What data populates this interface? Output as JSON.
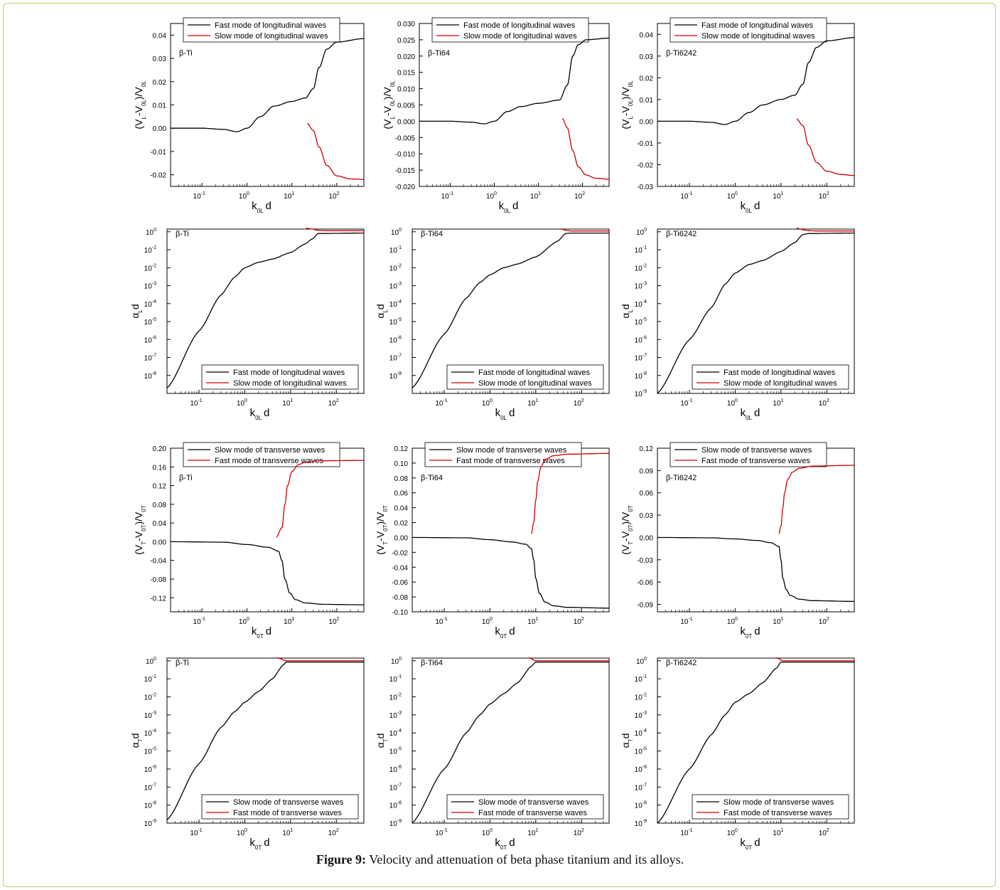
{
  "figure": {
    "caption_label": "Figure 9:",
    "caption_text": " Velocity and attenuation of beta phase titanium and its alloys."
  },
  "chart_data": [
    {
      "id": "a1",
      "type": "line",
      "material": "β-Ti",
      "xlabel": "k0L d",
      "ylabel": "(VL-V0L)/V0L",
      "xscale": "log",
      "xlim": [
        0.02,
        400
      ],
      "ylim": [
        -0.025,
        0.045
      ],
      "yticks": [
        "-0.02",
        "-0.01",
        "0.00",
        "0.01",
        "0.02",
        "0.03",
        "0.04"
      ],
      "ytick_values": [
        -0.02,
        -0.01,
        0,
        0.01,
        0.02,
        0.03,
        0.04
      ],
      "legend": "top",
      "series": [
        {
          "name": "Fast mode of longitudinal waves",
          "color": "#000000",
          "x": [
            0.02,
            0.1,
            0.3,
            0.6,
            1,
            2,
            4,
            10,
            20,
            30,
            40,
            60,
            100,
            400
          ],
          "y": [
            0.0,
            0.0,
            -0.0005,
            -0.0015,
            0.0,
            0.005,
            0.0095,
            0.0115,
            0.013,
            0.017,
            0.026,
            0.034,
            0.037,
            0.0385
          ]
        },
        {
          "name": "Slow mode of longitudinal waves",
          "color": "#cc0000",
          "x": [
            22,
            30,
            40,
            60,
            100,
            200,
            400
          ],
          "y": [
            0.002,
            -0.001,
            -0.008,
            -0.016,
            -0.0205,
            -0.0218,
            -0.022
          ]
        }
      ]
    },
    {
      "id": "a2",
      "type": "line",
      "material": "β-Ti64",
      "xlabel": "k0L d",
      "ylabel": "(VL-V0L)/V0L",
      "xscale": "log",
      "xlim": [
        0.02,
        400
      ],
      "ylim": [
        -0.02,
        0.03
      ],
      "yticks": [
        "-0.020",
        "-0.015",
        "-0.010",
        "-0.005",
        "0.000",
        "0.005",
        "0.010",
        "0.015",
        "0.020",
        "0.025",
        "0.030"
      ],
      "ytick_values": [
        -0.02,
        -0.015,
        -0.01,
        -0.005,
        0,
        0.005,
        0.01,
        0.015,
        0.02,
        0.025,
        0.03
      ],
      "legend": "top",
      "series": [
        {
          "name": "Fast mode of longitudinal waves",
          "color": "#000000",
          "x": [
            0.02,
            0.1,
            0.3,
            0.6,
            1,
            2,
            4,
            10,
            30,
            45,
            60,
            80,
            120,
            400
          ],
          "y": [
            0.0,
            0.0,
            -0.0003,
            -0.0008,
            0.0,
            0.003,
            0.0045,
            0.0055,
            0.0065,
            0.011,
            0.02,
            0.0235,
            0.025,
            0.0255
          ]
        },
        {
          "name": "Slow mode of longitudinal waves",
          "color": "#cc0000",
          "x": [
            35,
            45,
            60,
            80,
            120,
            200,
            400
          ],
          "y": [
            0.0008,
            -0.002,
            -0.009,
            -0.014,
            -0.0165,
            -0.0175,
            -0.0178
          ]
        }
      ]
    },
    {
      "id": "a3",
      "type": "line",
      "material": "β-Ti6242",
      "xlabel": "k0L d",
      "ylabel": "(VL-V0L)/V0L",
      "xscale": "log",
      "xlim": [
        0.02,
        400
      ],
      "ylim": [
        -0.03,
        0.045
      ],
      "yticks": [
        "-0.03",
        "-0.02",
        "-0.01",
        "0.00",
        "0.01",
        "0.02",
        "0.03",
        "0.04"
      ],
      "ytick_values": [
        -0.03,
        -0.02,
        -0.01,
        0,
        0.01,
        0.02,
        0.03,
        0.04
      ],
      "legend": "top",
      "series": [
        {
          "name": "Fast mode of longitudinal waves",
          "color": "#000000",
          "x": [
            0.02,
            0.1,
            0.3,
            0.6,
            1,
            2,
            4,
            10,
            20,
            30,
            40,
            60,
            100,
            400
          ],
          "y": [
            0.0,
            0.0,
            -0.0005,
            -0.0015,
            0.0,
            0.004,
            0.0075,
            0.01,
            0.012,
            0.017,
            0.027,
            0.034,
            0.037,
            0.0385
          ]
        },
        {
          "name": "Slow mode of longitudinal waves",
          "color": "#cc0000",
          "x": [
            22,
            30,
            40,
            60,
            100,
            200,
            400
          ],
          "y": [
            0.001,
            -0.002,
            -0.011,
            -0.019,
            -0.023,
            -0.0245,
            -0.025
          ]
        }
      ]
    },
    {
      "id": "b1",
      "type": "line",
      "material": "β-Ti",
      "xlabel": "k0L d",
      "ylabel": "αL d",
      "xscale": "log",
      "yscale": "log",
      "xlim": [
        0.02,
        400
      ],
      "ylim_exp": [
        -9,
        0
      ],
      "yticks": [
        "10-8",
        "10-7",
        "10-6",
        "10-5",
        "10-4",
        "10-3",
        "10-2",
        "10-1",
        "100"
      ],
      "ytick_values": [
        -8,
        -7,
        -6,
        -5,
        -4,
        -3,
        -2,
        -1,
        0
      ],
      "legend": "bottom-right",
      "series": [
        {
          "name": "Fast mode of longitudinal waves",
          "color": "#000000",
          "x": [
            0.02,
            0.1,
            0.3,
            0.6,
            1,
            2,
            4,
            10,
            20,
            30,
            40,
            400
          ],
          "y": [
            2e-09,
            3e-06,
            0.0003,
            0.003,
            0.01,
            0.02,
            0.03,
            0.07,
            0.2,
            0.4,
            0.8,
            0.85
          ]
        },
        {
          "name": "Slow mode of longitudinal waves",
          "color": "#cc0000",
          "x": [
            22,
            30,
            40,
            60,
            100,
            400
          ],
          "y": [
            1.6,
            1.4,
            1.2,
            1.15,
            1.15,
            1.15
          ]
        }
      ]
    },
    {
      "id": "b2",
      "type": "line",
      "material": "β-Ti64",
      "xlabel": "k0L d",
      "ylabel": "αL d",
      "xscale": "log",
      "yscale": "log",
      "xlim": [
        0.02,
        400
      ],
      "ylim_exp": [
        -9,
        0
      ],
      "yticks": [
        "10-8",
        "10-7",
        "10-6",
        "10-5",
        "10-4",
        "10-3",
        "10-2",
        "10-1",
        "100"
      ],
      "ytick_values": [
        -8,
        -7,
        -6,
        -5,
        -4,
        -3,
        -2,
        -1,
        0
      ],
      "legend": "bottom-right",
      "series": [
        {
          "name": "Fast mode of longitudinal waves",
          "color": "#000000",
          "x": [
            0.02,
            0.1,
            0.3,
            0.6,
            1,
            2,
            4,
            10,
            30,
            45,
            60,
            400
          ],
          "y": [
            2e-09,
            2e-06,
            0.0002,
            0.0015,
            0.004,
            0.01,
            0.016,
            0.04,
            0.3,
            0.8,
            0.85,
            0.85
          ]
        },
        {
          "name": "Slow mode of longitudinal waves",
          "color": "#cc0000",
          "x": [
            35,
            45,
            60,
            100,
            400
          ],
          "y": [
            1.5,
            1.2,
            1.1,
            1.1,
            1.1
          ]
        }
      ]
    },
    {
      "id": "b3",
      "type": "line",
      "material": "β-Ti6242",
      "xlabel": "k0L d",
      "ylabel": "αL d",
      "xscale": "log",
      "yscale": "log",
      "xlim": [
        0.02,
        400
      ],
      "ylim_exp": [
        -9,
        0
      ],
      "yticks": [
        "10-9",
        "10-8",
        "10-7",
        "10-6",
        "10-5",
        "10-4",
        "10-3",
        "10-2",
        "10-1",
        "100"
      ],
      "ytick_values": [
        -9,
        -8,
        -7,
        -6,
        -5,
        -4,
        -3,
        -2,
        -1,
        0
      ],
      "legend": "bottom-right",
      "series": [
        {
          "name": "Fast mode of longitudinal waves",
          "color": "#000000",
          "x": [
            0.02,
            0.1,
            0.3,
            0.6,
            1,
            2,
            4,
            10,
            20,
            30,
            40,
            400
          ],
          "y": [
            1e-09,
            1e-06,
            6e-05,
            0.0012,
            0.005,
            0.015,
            0.025,
            0.08,
            0.25,
            0.7,
            0.8,
            0.85
          ]
        },
        {
          "name": "Slow mode of longitudinal waves",
          "color": "#cc0000",
          "x": [
            22,
            30,
            40,
            60,
            100,
            400
          ],
          "y": [
            1.6,
            1.3,
            1.15,
            1.1,
            1.1,
            1.1
          ]
        }
      ]
    },
    {
      "id": "c1",
      "type": "line",
      "material": "β-Ti",
      "xlabel": "k0T d",
      "ylabel": "(VT-V0T)/V0T",
      "xscale": "log",
      "xlim": [
        0.02,
        400
      ],
      "ylim": [
        -0.15,
        0.2
      ],
      "yticks": [
        "-0.12",
        "-0.08",
        "-0.04",
        "0.00",
        "0.04",
        "0.08",
        "0.12",
        "0.16",
        "0.20"
      ],
      "ytick_values": [
        -0.12,
        -0.08,
        -0.04,
        0,
        0.04,
        0.08,
        0.12,
        0.16,
        0.2
      ],
      "legend": "top",
      "series": [
        {
          "name": "Slow mode of transverse waves",
          "color": "#000000",
          "x": [
            0.02,
            0.3,
            1,
            3,
            5,
            6,
            7,
            9,
            12,
            20,
            50,
            400
          ],
          "y": [
            0.0,
            -0.001,
            -0.006,
            -0.012,
            -0.02,
            -0.04,
            -0.08,
            -0.11,
            -0.124,
            -0.131,
            -0.134,
            -0.135
          ]
        },
        {
          "name": "Fast mode of transverse waves",
          "color": "#cc0000",
          "x": [
            4.5,
            6,
            7,
            8,
            10,
            14,
            20,
            40,
            400
          ],
          "y": [
            0.01,
            0.03,
            0.08,
            0.12,
            0.15,
            0.165,
            0.17,
            0.173,
            0.174
          ]
        }
      ]
    },
    {
      "id": "c2",
      "type": "line",
      "material": "β-Ti64",
      "xlabel": "k0T d",
      "ylabel": "(VT-V0T)/V0T",
      "xscale": "log",
      "xlim": [
        0.02,
        400
      ],
      "ylim": [
        -0.1,
        0.12
      ],
      "yticks": [
        "-0.10",
        "-0.08",
        "-0.06",
        "-0.04",
        "-0.02",
        "0.00",
        "0.02",
        "0.04",
        "0.06",
        "0.08",
        "0.10",
        "0.12"
      ],
      "ytick_values": [
        -0.1,
        -0.08,
        -0.06,
        -0.04,
        -0.02,
        0,
        0.02,
        0.04,
        0.06,
        0.08,
        0.1,
        0.12
      ],
      "legend": "top",
      "series": [
        {
          "name": "Slow mode of transverse waves",
          "color": "#000000",
          "x": [
            0.02,
            0.3,
            1,
            3,
            6,
            8,
            9,
            10,
            12,
            16,
            25,
            50,
            400
          ],
          "y": [
            0.0,
            -0.0005,
            -0.003,
            -0.006,
            -0.009,
            -0.015,
            -0.03,
            -0.055,
            -0.075,
            -0.087,
            -0.092,
            -0.094,
            -0.095
          ]
        },
        {
          "name": "Fast mode of transverse waves",
          "color": "#cc0000",
          "x": [
            8,
            9,
            10,
            11,
            13,
            16,
            25,
            50,
            400
          ],
          "y": [
            0.005,
            0.02,
            0.05,
            0.075,
            0.095,
            0.105,
            0.11,
            0.112,
            0.113
          ]
        }
      ]
    },
    {
      "id": "c3",
      "type": "line",
      "material": "β-Ti6242",
      "xlabel": "k0T d",
      "ylabel": "(VT-V0T)/V0T",
      "xscale": "log",
      "xlim": [
        0.02,
        400
      ],
      "ylim": [
        -0.1,
        0.12
      ],
      "yticks": [
        "-0.09",
        "-0.06",
        "-0.03",
        "0.00",
        "0.03",
        "0.06",
        "0.09",
        "0.12"
      ],
      "ytick_values": [
        -0.09,
        -0.06,
        -0.03,
        0,
        0.03,
        0.06,
        0.09,
        0.12
      ],
      "legend": "top",
      "series": [
        {
          "name": "Slow mode of transverse waves",
          "color": "#000000",
          "x": [
            0.02,
            0.3,
            1,
            3,
            6,
            9,
            10,
            11,
            13,
            16,
            25,
            50,
            400
          ],
          "y": [
            0.0,
            -0.0005,
            -0.002,
            -0.004,
            -0.007,
            -0.012,
            -0.03,
            -0.055,
            -0.07,
            -0.078,
            -0.083,
            -0.085,
            -0.086
          ]
        },
        {
          "name": "Fast mode of transverse waves",
          "color": "#cc0000",
          "x": [
            9,
            10,
            11,
            12,
            14,
            18,
            25,
            50,
            400
          ],
          "y": [
            0.005,
            0.015,
            0.04,
            0.06,
            0.078,
            0.088,
            0.093,
            0.096,
            0.097
          ]
        }
      ]
    },
    {
      "id": "d1",
      "type": "line",
      "material": "β-Ti",
      "xlabel": "k0T d",
      "ylabel": "αT d",
      "xscale": "log",
      "yscale": "log",
      "xlim": [
        0.02,
        400
      ],
      "ylim_exp": [
        -9,
        0
      ],
      "yticks": [
        "10-9",
        "10-8",
        "10-7",
        "10-6",
        "10-5",
        "10-4",
        "10-3",
        "10-2",
        "10-1",
        "100"
      ],
      "ytick_values": [
        -9,
        -8,
        -7,
        -6,
        -5,
        -4,
        -3,
        -2,
        -1,
        0
      ],
      "legend": "bottom-right",
      "series": [
        {
          "name": "Slow mode of transverse waves",
          "color": "#000000",
          "x": [
            0.02,
            0.1,
            0.3,
            0.6,
            1,
            2,
            4,
            7,
            8,
            400
          ],
          "y": [
            1.5e-09,
            2e-06,
            0.0002,
            0.0015,
            0.005,
            0.02,
            0.1,
            0.6,
            0.85,
            0.85
          ]
        },
        {
          "name": "Fast mode of transverse waves",
          "color": "#cc0000",
          "x": [
            5,
            6,
            7,
            8,
            10,
            400
          ],
          "y": [
            1.5,
            1.3,
            1.1,
            1.0,
            1.0,
            1.0
          ]
        }
      ]
    },
    {
      "id": "d2",
      "type": "line",
      "material": "β-Ti64",
      "xlabel": "k0T d",
      "ylabel": "αT d",
      "xscale": "log",
      "yscale": "log",
      "xlim": [
        0.02,
        400
      ],
      "ylim_exp": [
        -9,
        0
      ],
      "yticks": [
        "10-9",
        "10-8",
        "10-7",
        "10-6",
        "10-5",
        "10-4",
        "10-3",
        "10-2",
        "10-1",
        "100"
      ],
      "ytick_values": [
        -9,
        -8,
        -7,
        -6,
        -5,
        -4,
        -3,
        -2,
        -1,
        0
      ],
      "legend": "bottom-right",
      "series": [
        {
          "name": "Slow mode of transverse waves",
          "color": "#000000",
          "x": [
            0.02,
            0.1,
            0.3,
            0.6,
            1,
            2,
            4,
            8,
            10,
            400
          ],
          "y": [
            1e-09,
            1e-06,
            0.0001,
            0.001,
            0.004,
            0.015,
            0.06,
            0.5,
            0.85,
            0.85
          ]
        },
        {
          "name": "Fast mode of transverse waves",
          "color": "#cc0000",
          "x": [
            7,
            8,
            9,
            10,
            12,
            400
          ],
          "y": [
            1.5,
            1.3,
            1.1,
            1.0,
            1.0,
            1.0
          ]
        }
      ]
    },
    {
      "id": "d3",
      "type": "line",
      "material": "β-Ti6242",
      "xlabel": "k0T d",
      "ylabel": "αT d",
      "xscale": "log",
      "yscale": "log",
      "xlim": [
        0.02,
        400
      ],
      "ylim_exp": [
        -9,
        0
      ],
      "yticks": [
        "10-9",
        "10-8",
        "10-7",
        "10-6",
        "10-5",
        "10-4",
        "10-3",
        "10-2",
        "10-1",
        "100"
      ],
      "ytick_values": [
        -9,
        -8,
        -7,
        -6,
        -5,
        -4,
        -3,
        -2,
        -1,
        0
      ],
      "legend": "bottom-right",
      "series": [
        {
          "name": "Slow mode of transverse waves",
          "color": "#000000",
          "x": [
            0.02,
            0.1,
            0.3,
            0.6,
            1,
            2,
            4,
            8,
            10,
            400
          ],
          "y": [
            1e-09,
            1e-06,
            8e-05,
            0.001,
            0.005,
            0.015,
            0.06,
            0.4,
            0.85,
            0.85
          ]
        },
        {
          "name": "Fast mode of transverse waves",
          "color": "#cc0000",
          "x": [
            8,
            9,
            10,
            11,
            13,
            400
          ],
          "y": [
            1.5,
            1.3,
            1.1,
            1.0,
            1.0,
            1.0
          ]
        }
      ]
    }
  ]
}
